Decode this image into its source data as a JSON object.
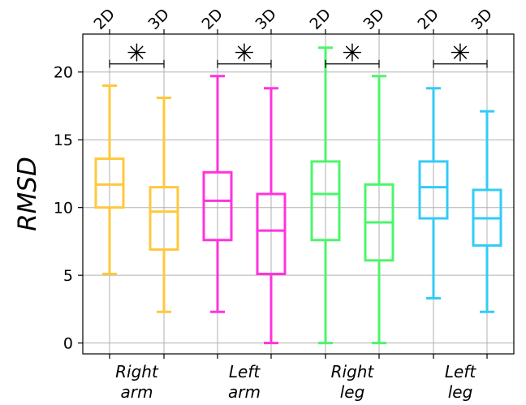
{
  "chart_data": {
    "type": "box",
    "ylabel": "RMSD",
    "xlabel": "",
    "ylim": [
      -0.8,
      22.8
    ],
    "yticks": [
      0,
      5,
      10,
      15,
      20
    ],
    "grid": true,
    "top_labels": [
      "2D",
      "3D",
      "2D",
      "3D",
      "2D",
      "3D",
      "2D",
      "3D"
    ],
    "categories": [
      {
        "line1": "Right",
        "line2": "arm"
      },
      {
        "line1": "Left",
        "line2": "arm"
      },
      {
        "line1": "Right",
        "line2": "leg"
      },
      {
        "line1": "Left",
        "line2": "leg"
      }
    ],
    "significance_marker": "✳",
    "boxes": [
      {
        "category": "Right arm",
        "condition": "2D",
        "color": "#FFC83D",
        "min": 5.1,
        "q1": 10.0,
        "median": 11.7,
        "q3": 13.6,
        "max": 19.0
      },
      {
        "category": "Right arm",
        "condition": "3D",
        "color": "#FFC83D",
        "min": 2.3,
        "q1": 6.9,
        "median": 9.7,
        "q3": 11.5,
        "max": 18.1
      },
      {
        "category": "Left arm",
        "condition": "2D",
        "color": "#FF33DD",
        "min": 2.3,
        "q1": 7.6,
        "median": 10.5,
        "q3": 12.6,
        "max": 19.7
      },
      {
        "category": "Left arm",
        "condition": "3D",
        "color": "#FF33DD",
        "min": 0.0,
        "q1": 5.1,
        "median": 8.3,
        "q3": 11.0,
        "max": 18.8
      },
      {
        "category": "Right leg",
        "condition": "2D",
        "color": "#4DF56B",
        "min": 0.0,
        "q1": 7.6,
        "median": 11.0,
        "q3": 13.4,
        "max": 21.8
      },
      {
        "category": "Right leg",
        "condition": "3D",
        "color": "#4DF56B",
        "min": 0.0,
        "q1": 6.1,
        "median": 8.9,
        "q3": 11.7,
        "max": 19.7
      },
      {
        "category": "Left leg",
        "condition": "2D",
        "color": "#33CCF5",
        "min": 3.3,
        "q1": 9.2,
        "median": 11.5,
        "q3": 13.4,
        "max": 18.8
      },
      {
        "category": "Left leg",
        "condition": "3D",
        "color": "#33CCF5",
        "min": 2.3,
        "q1": 7.2,
        "median": 9.2,
        "q3": 11.3,
        "max": 17.1
      }
    ],
    "significance": [
      {
        "pair": [
          "Right arm 2D",
          "Right arm 3D"
        ],
        "y": 20.6
      },
      {
        "pair": [
          "Left arm 2D",
          "Left arm 3D"
        ],
        "y": 20.6
      },
      {
        "pair": [
          "Right leg 2D",
          "Right leg 3D"
        ],
        "y": 20.6
      },
      {
        "pair": [
          "Left leg 2D",
          "Left leg 3D"
        ],
        "y": 20.6
      }
    ]
  }
}
